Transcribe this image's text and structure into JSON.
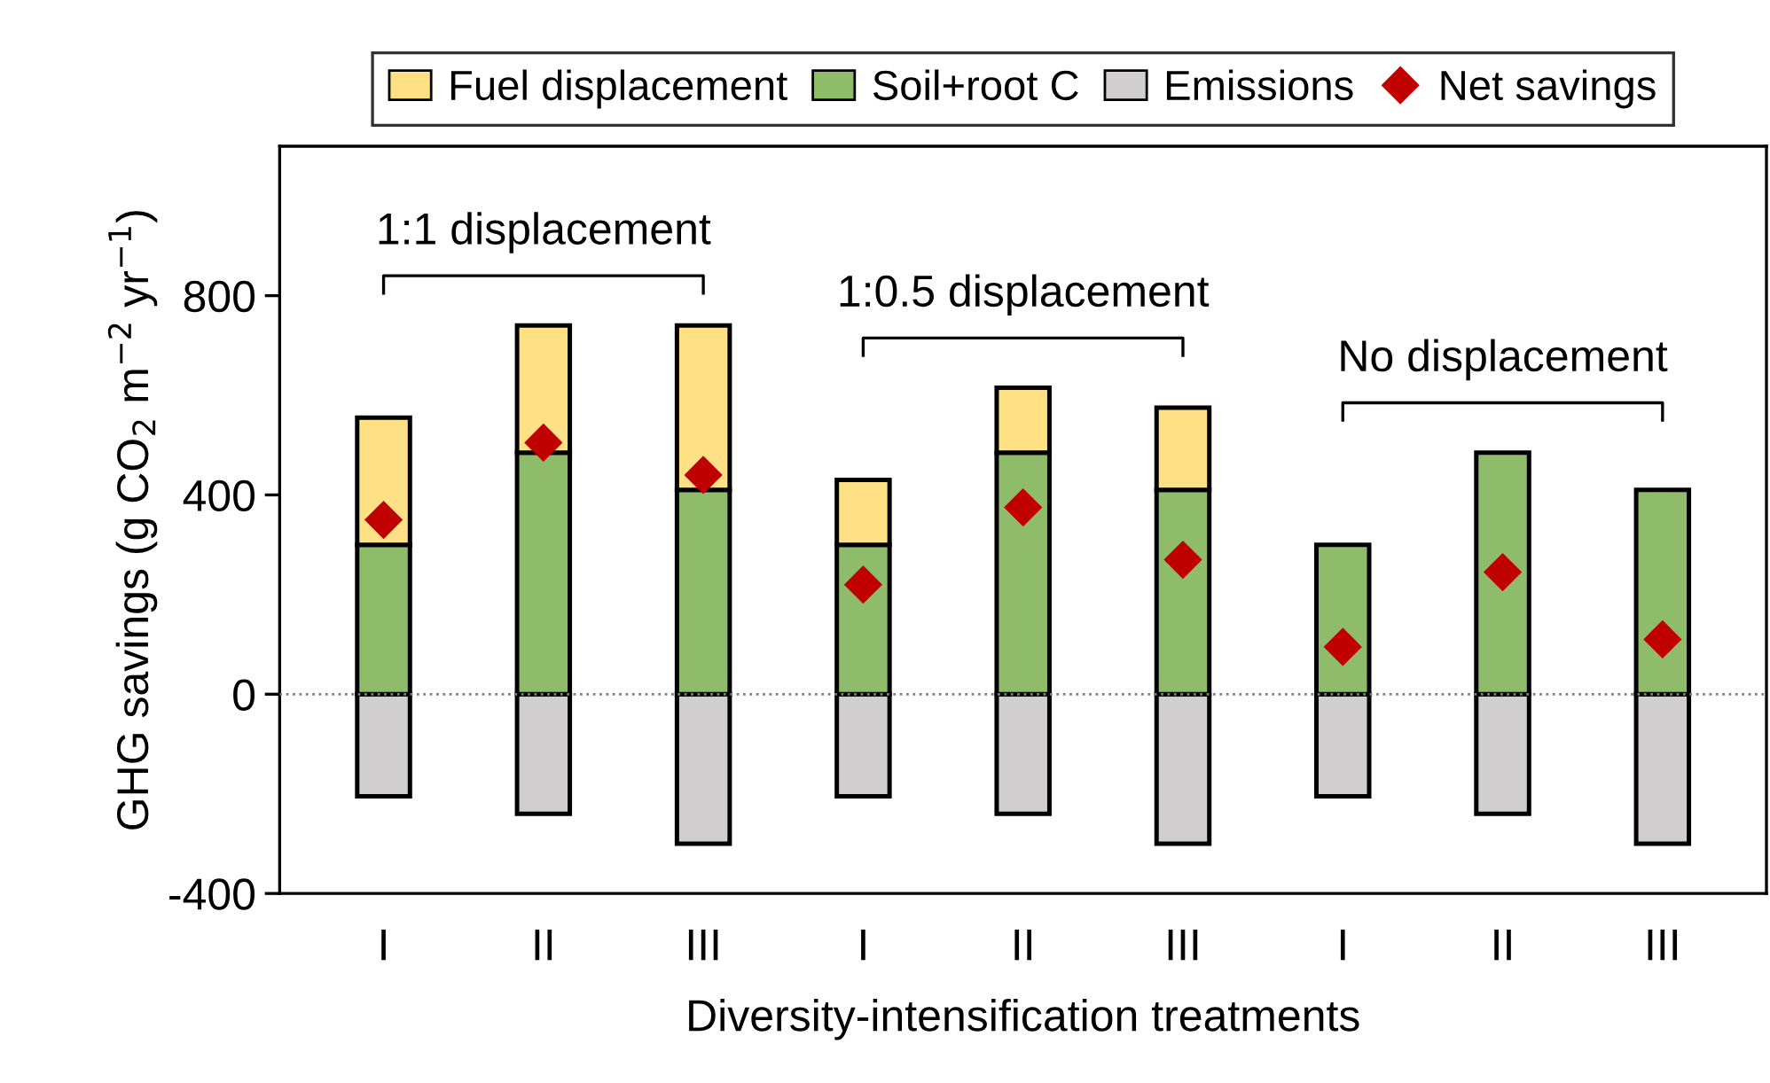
{
  "chart_data": {
    "type": "bar",
    "stacked": true,
    "xlabel": "Diversity-intensification treatments",
    "ylabel": "GHG savings (g CO$_{2}$ m$^{−2}$ yr$^{−1}$)",
    "categories": [
      "I",
      "II",
      "III",
      "I",
      "II",
      "III",
      "I",
      "II",
      "III"
    ],
    "series": [
      {
        "name": "Emissions",
        "color": "#d0cece",
        "values": [
          -205,
          -240,
          -300,
          -205,
          -240,
          -300,
          -205,
          -240,
          -300
        ]
      },
      {
        "name": "Soil+root C",
        "color": "#8fbc6b",
        "values": [
          300,
          485,
          410,
          300,
          485,
          410,
          300,
          485,
          410
        ]
      },
      {
        "name": "Fuel displacement",
        "color": "#ffe084",
        "values": [
          255,
          255,
          330,
          130,
          130,
          165,
          null,
          null,
          null
        ]
      },
      {
        "name": "Net savings",
        "type": "scatter",
        "marker": "diamond",
        "color": "#c00000",
        "values": [
          350,
          505,
          440,
          220,
          375,
          270,
          95,
          245,
          110
        ]
      }
    ],
    "ylim": [
      -400,
      1100
    ],
    "yticks": [
      -400,
      0,
      400,
      800
    ],
    "ref_lines": [
      {
        "axis": "y",
        "value": 0,
        "line_style": "dotted",
        "color": "#808080"
      }
    ],
    "annotations": [
      "1:1 displacement",
      "1:0.5 displacement",
      "No displacement"
    ],
    "legend": "top",
    "grid": false
  }
}
